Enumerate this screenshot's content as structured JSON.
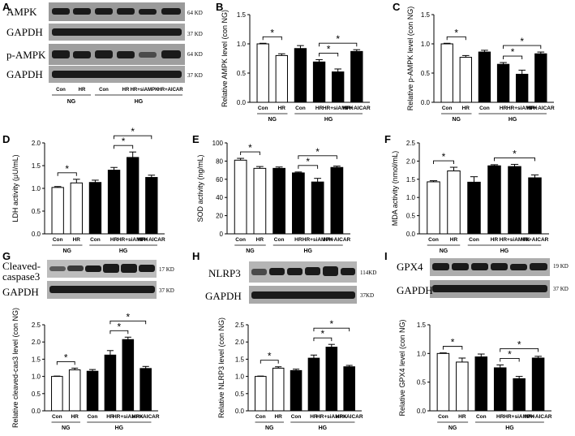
{
  "panels": {
    "A": {
      "letter": "A",
      "rows": [
        {
          "label": "AMPK",
          "kd": "64 KD"
        },
        {
          "label": "GAPDH",
          "kd": "37 KD"
        },
        {
          "label": "p-AMPK",
          "kd": "64 KD"
        },
        {
          "label": "GAPDH",
          "kd": "37 KD"
        }
      ],
      "lanes": [
        "Con",
        "HR",
        "Con",
        "HR",
        "HR+siAMPK",
        "HR+AICAR"
      ],
      "groups": [
        {
          "label": "NG"
        },
        {
          "label": "HG"
        }
      ]
    },
    "G": {
      "letter": "G",
      "rows": [
        {
          "label": "Cleaved-caspase3",
          "line1": "Cleaved-",
          "line2": "caspase3",
          "kd": "17 KD"
        },
        {
          "label": "GAPDH",
          "kd": "37 KD"
        }
      ]
    },
    "H": {
      "letter": "H",
      "rows": [
        {
          "label": "NLRP3",
          "kd": "114KD"
        },
        {
          "label": "GAPDH",
          "kd": "37KD"
        }
      ]
    },
    "I": {
      "letter": "I",
      "rows": [
        {
          "label": "GPX4",
          "kd": "19 KD"
        },
        {
          "label": "GAPDH",
          "kd": "37 KD"
        }
      ]
    }
  },
  "chart_data": [
    {
      "panel": "B",
      "type": "bar",
      "ylabel": "Relative AMPK level (con NG)",
      "ylim": [
        0,
        1.5
      ],
      "yticks": [
        "0.0",
        "0.5",
        "1.0",
        "1.5"
      ],
      "categories": [
        "Con",
        "HR",
        "Con",
        "HR",
        "HR+siAMPK",
        "HR+AICAR"
      ],
      "groups": [
        "NG",
        "HG"
      ],
      "values": [
        1.0,
        0.8,
        0.92,
        0.69,
        0.52,
        0.87
      ],
      "errors": [
        0.01,
        0.03,
        0.05,
        0.04,
        0.05,
        0.03
      ],
      "fill": [
        "white",
        "white",
        "black",
        "black",
        "black",
        "black"
      ],
      "significance": [
        {
          "from": 0,
          "to": 1,
          "label": "*"
        },
        {
          "from": 3,
          "to": 4,
          "label": "*"
        },
        {
          "from": 3,
          "to": 5,
          "label": "*"
        }
      ]
    },
    {
      "panel": "C",
      "type": "bar",
      "ylabel": "Relative p-AMPK level (con NG)",
      "ylim": [
        0,
        1.5
      ],
      "yticks": [
        "0.0",
        "0.5",
        "1.0",
        "1.5"
      ],
      "categories": [
        "Con",
        "HR",
        "Con",
        "HR",
        "HR+siAMPK",
        "HR+AICAR"
      ],
      "groups": [
        "NG",
        "HG"
      ],
      "values": [
        1.0,
        0.77,
        0.86,
        0.65,
        0.48,
        0.83
      ],
      "errors": [
        0.01,
        0.03,
        0.03,
        0.03,
        0.07,
        0.03
      ],
      "fill": [
        "white",
        "white",
        "black",
        "black",
        "black",
        "black"
      ],
      "significance": [
        {
          "from": 0,
          "to": 1,
          "label": "*"
        },
        {
          "from": 3,
          "to": 4,
          "label": "*"
        },
        {
          "from": 3,
          "to": 5,
          "label": "*"
        }
      ]
    },
    {
      "panel": "D",
      "type": "bar",
      "ylabel": "LDH activity (μU/mL)",
      "ylim": [
        0,
        2.0
      ],
      "yticks": [
        "0.0",
        "0.5",
        "1.0",
        "1.5",
        "2.0"
      ],
      "categories": [
        "Con",
        "HR",
        "Con",
        "HR",
        "HR+siAMPK",
        "HR+AICAR"
      ],
      "groups": [
        "NG",
        "HG"
      ],
      "values": [
        1.02,
        1.12,
        1.13,
        1.4,
        1.68,
        1.24
      ],
      "errors": [
        0.02,
        0.08,
        0.05,
        0.06,
        0.12,
        0.05
      ],
      "fill": [
        "white",
        "white",
        "black",
        "black",
        "black",
        "black"
      ],
      "significance": [
        {
          "from": 0,
          "to": 1,
          "label": "*"
        },
        {
          "from": 3,
          "to": 4,
          "label": "*"
        },
        {
          "from": 3,
          "to": 5,
          "label": "*"
        }
      ]
    },
    {
      "panel": "E",
      "type": "bar",
      "ylabel": "SOD activity (ng/mL)",
      "ylim": [
        0,
        100
      ],
      "yticks": [
        "0",
        "20",
        "40",
        "60",
        "80",
        "100"
      ],
      "categories": [
        "Con",
        "HR",
        "Con",
        "HR",
        "HR+siAMPK",
        "HR+AICAR"
      ],
      "groups": [
        "NG",
        "HG"
      ],
      "values": [
        81,
        72,
        72,
        67,
        57,
        73
      ],
      "errors": [
        2,
        2,
        1.5,
        1,
        4,
        1.5
      ],
      "fill": [
        "white",
        "white",
        "black",
        "black",
        "black",
        "black"
      ],
      "significance": [
        {
          "from": 0,
          "to": 1,
          "label": "*"
        },
        {
          "from": 3,
          "to": 4,
          "label": "*"
        },
        {
          "from": 3,
          "to": 5,
          "label": "*"
        }
      ]
    },
    {
      "panel": "F",
      "type": "bar",
      "ylabel": "MDA activity (nmol/mL)",
      "ylim": [
        0,
        2.5
      ],
      "yticks": [
        "0.0",
        "0.5",
        "1.0",
        "1.5",
        "2.0",
        "2.5"
      ],
      "categories": [
        "Con",
        "HR",
        "Con",
        "HR",
        "HR+siAMPK",
        "HR+AICAR"
      ],
      "groups": [
        "NG",
        "HG"
      ],
      "values": [
        1.43,
        1.73,
        1.42,
        1.87,
        1.85,
        1.54
      ],
      "errors": [
        0.03,
        0.1,
        0.15,
        0.03,
        0.06,
        0.08
      ],
      "fill": [
        "white",
        "white",
        "black",
        "black",
        "black",
        "black"
      ],
      "significance": [
        {
          "from": 0,
          "to": 1,
          "label": "*"
        },
        {
          "from": 3,
          "to": 5,
          "label": "*"
        }
      ]
    },
    {
      "panel": "G",
      "type": "bar",
      "ylabel": "Relative cleaved-cas3 level (con NG)",
      "ylim": [
        0,
        2.5
      ],
      "yticks": [
        "0.0",
        "0.5",
        "1.0",
        "1.5",
        "2.0",
        "2.5"
      ],
      "categories": [
        "Con",
        "HR",
        "Con",
        "HR",
        "HR+siAMPK",
        "HR+AICAR"
      ],
      "groups": [
        "NG",
        "HG"
      ],
      "values": [
        1.0,
        1.19,
        1.15,
        1.62,
        2.07,
        1.23
      ],
      "errors": [
        0.01,
        0.05,
        0.05,
        0.13,
        0.07,
        0.06
      ],
      "fill": [
        "white",
        "white",
        "black",
        "black",
        "black",
        "black"
      ],
      "significance": [
        {
          "from": 0,
          "to": 1,
          "label": "*"
        },
        {
          "from": 3,
          "to": 4,
          "label": "*"
        },
        {
          "from": 3,
          "to": 5,
          "label": "*"
        }
      ]
    },
    {
      "panel": "H",
      "type": "bar",
      "ylabel": "Relative NLRP3 level (con NG)",
      "ylim": [
        0,
        2.5
      ],
      "yticks": [
        "0.0",
        "0.5",
        "1.0",
        "1.5",
        "2.0",
        "2.5"
      ],
      "categories": [
        "Con",
        "HR",
        "Con",
        "HR",
        "HR+siAMPK",
        "HR+AICAR"
      ],
      "groups": [
        "NG",
        "HG"
      ],
      "values": [
        1.0,
        1.24,
        1.17,
        1.53,
        1.85,
        1.28
      ],
      "errors": [
        0.01,
        0.04,
        0.04,
        0.09,
        0.08,
        0.04
      ],
      "fill": [
        "white",
        "white",
        "black",
        "black",
        "black",
        "black"
      ],
      "significance": [
        {
          "from": 0,
          "to": 1,
          "label": "*"
        },
        {
          "from": 3,
          "to": 4,
          "label": "*"
        },
        {
          "from": 3,
          "to": 5,
          "label": "*"
        }
      ]
    },
    {
      "panel": "I",
      "type": "bar",
      "ylabel": "Relative GPX4 level (con NG)",
      "ylim": [
        0,
        1.5
      ],
      "yticks": [
        "0.0",
        "0.5",
        "1.0",
        "1.5"
      ],
      "categories": [
        "Con",
        "HR",
        "Con",
        "HR",
        "HR+siAMPK",
        "HR+AICAR"
      ],
      "groups": [
        "NG",
        "HG"
      ],
      "values": [
        1.0,
        0.85,
        0.94,
        0.75,
        0.56,
        0.92
      ],
      "errors": [
        0.01,
        0.07,
        0.05,
        0.05,
        0.04,
        0.03
      ],
      "fill": [
        "white",
        "white",
        "black",
        "black",
        "black",
        "black"
      ],
      "significance": [
        {
          "from": 0,
          "to": 1,
          "label": "*"
        },
        {
          "from": 3,
          "to": 4,
          "label": "*"
        },
        {
          "from": 3,
          "to": 5,
          "label": "*"
        }
      ]
    }
  ]
}
